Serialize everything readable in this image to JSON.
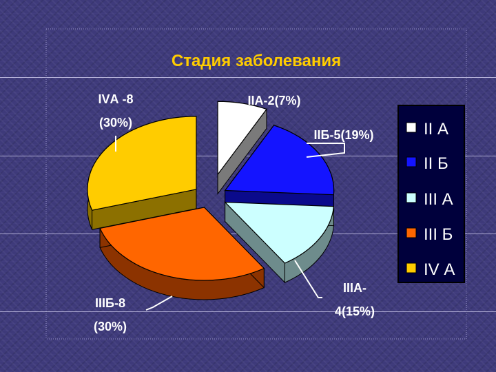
{
  "chart_data": {
    "type": "pie",
    "title": "Стадия заболевания",
    "slices": [
      {
        "name": "II А",
        "value": 2,
        "percent": 7,
        "color": "#ffffff",
        "side": "#7a7a7a",
        "label": [
          "IIА-2(7%)"
        ]
      },
      {
        "name": "II Б",
        "value": 5,
        "percent": 19,
        "color": "#1414ff",
        "side": "#0a0a8c",
        "label": [
          "IIБ-5(19%)"
        ]
      },
      {
        "name": "III А",
        "value": 4,
        "percent": 15,
        "color": "#ccffff",
        "side": "#6e8c8c",
        "label": [
          "IIIА-",
          "4(15%)"
        ]
      },
      {
        "name": "III Б",
        "value": 8,
        "percent": 30,
        "color": "#ff6600",
        "side": "#8c3300",
        "label": [
          "IIIБ-8",
          "(30%)"
        ]
      },
      {
        "name": "IV А",
        "value": 8,
        "percent": 30,
        "color": "#ffcc00",
        "side": "#8c7000",
        "label": [
          "IVА -8",
          "(30%)"
        ]
      }
    ],
    "legend_position": "right"
  }
}
